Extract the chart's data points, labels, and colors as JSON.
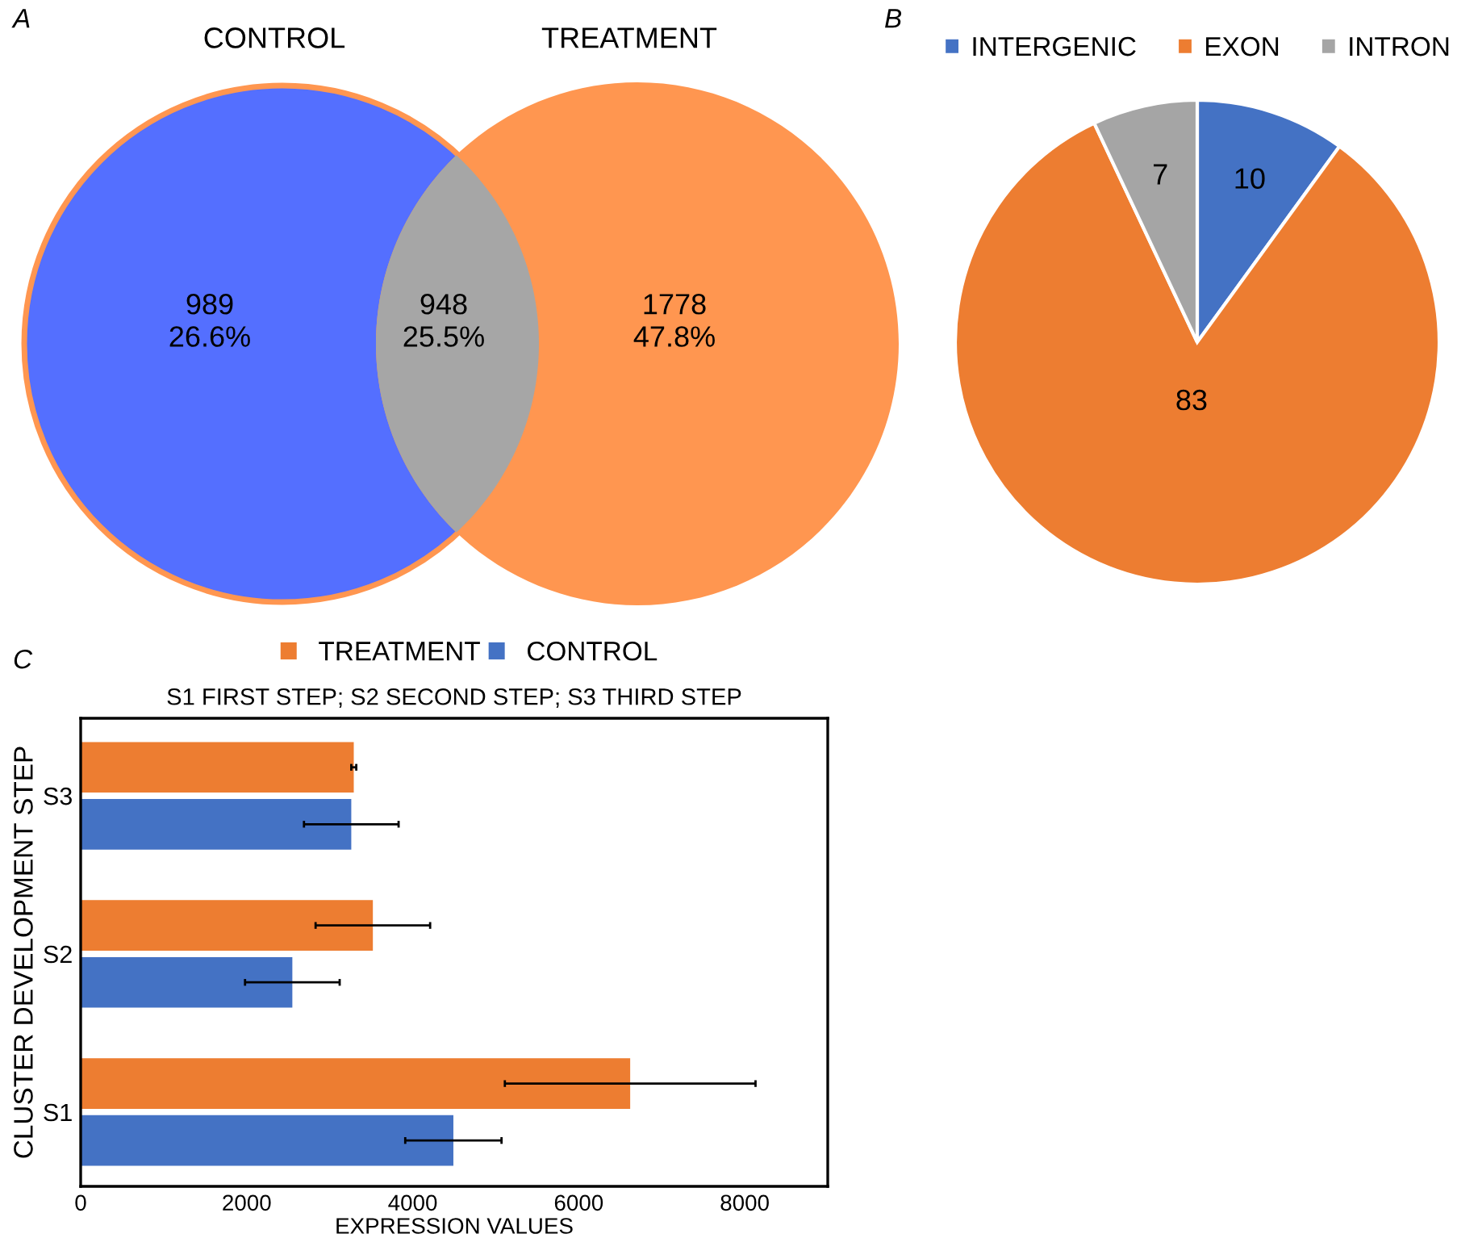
{
  "chart_data": [
    {
      "type": "other",
      "annotations": [
        "A"
      ],
      "categories": [
        "CONTROL",
        null,
        "TREATMENT"
      ],
      "value_labels": [
        "989\n26.6%",
        "948\n25.5%",
        "1778\n47.8%"
      ],
      "colors": [
        "#546fff",
        "#a6a6a6",
        "#ff9650"
      ]
    },
    {
      "type": "pie",
      "annotations": [
        "B"
      ],
      "categories": [
        "INTERGENIC",
        "EXON",
        "INTRON"
      ],
      "values": [
        10,
        83,
        7
      ],
      "colors": [
        "#4472c4",
        "#ed7d31",
        "#a5a5a5"
      ],
      "data_labels": true,
      "legend": "top"
    },
    {
      "type": "bar",
      "orientation": "horizontal",
      "annotations": [
        "C"
      ],
      "title": "S1 FIRST STEP; S2 SECOND STEP; S3 THIRD STEP",
      "xlabel": "EXPRESSION VALUES",
      "ylabel": "CLUSTER DEVELOPMENT STEP",
      "categories": [
        "S3",
        "S2",
        "S1"
      ],
      "series": [
        {
          "name": "TREATMENT",
          "color": "#ed7d31",
          "values": [
            3290,
            3520,
            6620
          ],
          "errors": [
            30,
            690,
            1510
          ]
        },
        {
          "name": "CONTROL",
          "color": "#4472c4",
          "values": [
            3260,
            2550,
            4490
          ],
          "errors": [
            570,
            570,
            580
          ]
        }
      ],
      "xlim": [
        0,
        9000
      ],
      "xticks": [
        0,
        2000,
        4000,
        6000,
        8000
      ],
      "grid": false,
      "legend": "top"
    }
  ]
}
